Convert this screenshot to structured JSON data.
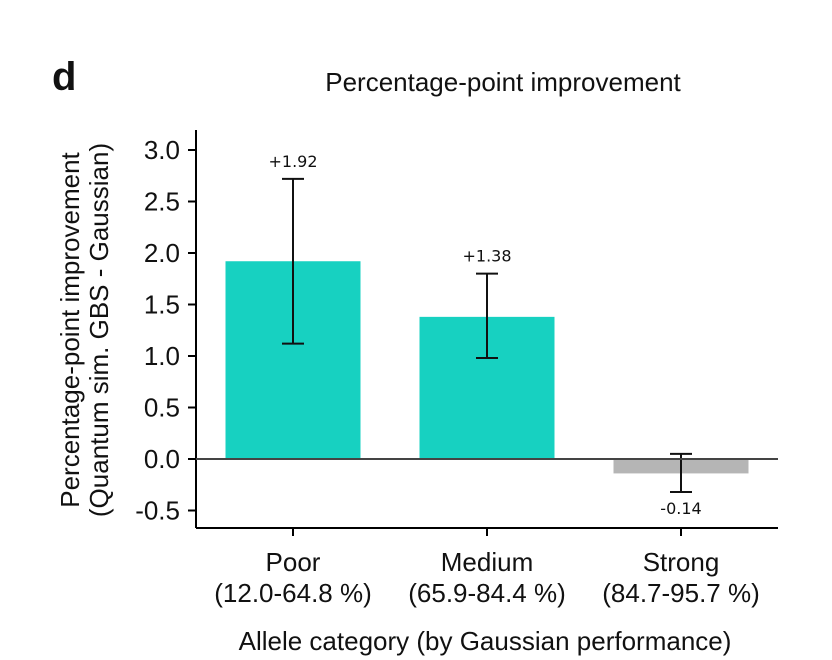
{
  "panel_label": "d",
  "chart_data": {
    "type": "bar",
    "title": "Percentage-point improvement",
    "ylabel_line1": "Percentage-point improvement",
    "ylabel_line2": "(Quantum sim. GBS - Gaussian)",
    "xlabel": "Allele category (by Gaussian performance)",
    "categories": [
      {
        "name": "Poor",
        "range": "(12.0-64.8 %)"
      },
      {
        "name": "Medium",
        "range": "(65.9-84.4 %)"
      },
      {
        "name": "Strong",
        "range": "(84.7-95.7 %)"
      }
    ],
    "values": [
      1.92,
      1.38,
      -0.14
    ],
    "value_labels": [
      "+1.92",
      "+1.38",
      "-0.14"
    ],
    "error_low": [
      1.12,
      0.98,
      -0.32
    ],
    "error_high": [
      2.72,
      1.8,
      0.05
    ],
    "bar_colors": [
      "#17d1c1",
      "#17d1c1",
      "#b5b5b5"
    ],
    "ylim": [
      -0.65,
      3.2
    ],
    "yticks": [
      3.0,
      2.5,
      2.0,
      1.5,
      1.0,
      0.5,
      0.0,
      -0.5
    ],
    "ytick_labels": [
      "3.0",
      "2.5",
      "2.0",
      "1.5",
      "1.0",
      "0.5",
      "0.0",
      "-0.5"
    ]
  }
}
